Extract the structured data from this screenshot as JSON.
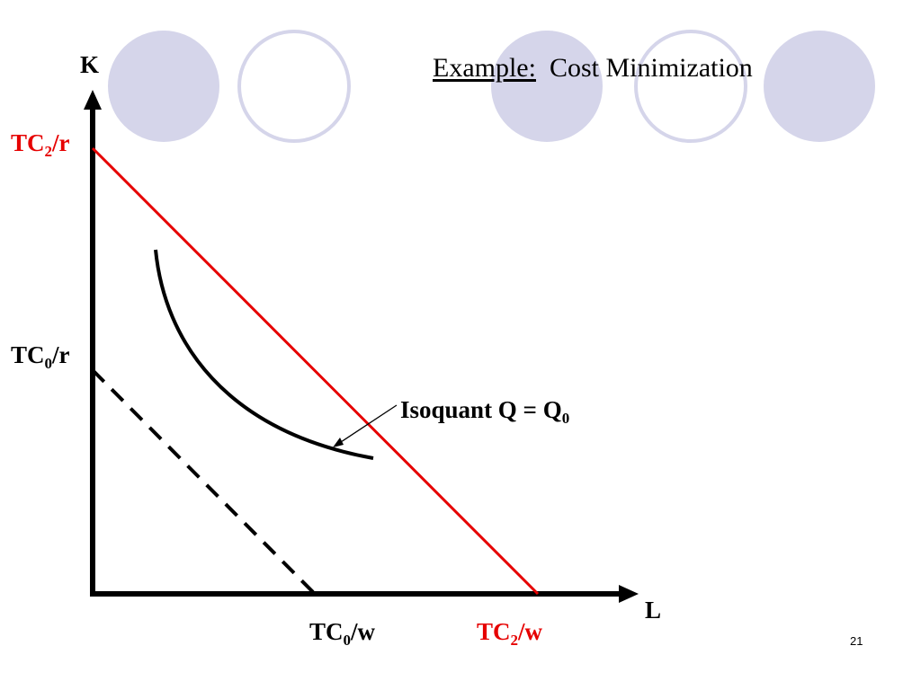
{
  "slide": {
    "title_prefix": "Example:",
    "title_text": "Cost Minimization",
    "page_number": "21"
  },
  "axes": {
    "y_label": "K",
    "x_label": "L"
  },
  "labels": {
    "tc2_r": {
      "main": "TC",
      "sub": "2",
      "tail": "/r"
    },
    "tc0_r": {
      "main": "TC",
      "sub": "0",
      "tail": "/r"
    },
    "tc0_w": {
      "main": "TC",
      "sub": "0",
      "tail": "/w"
    },
    "tc2_w": {
      "main": "TC",
      "sub": "2",
      "tail": "/w"
    },
    "isoquant": {
      "main": "Isoquant Q = Q",
      "sub": "0"
    }
  },
  "colors": {
    "decor_filled": "#d5d5ea",
    "decor_outline": "#d5d5ea",
    "isocost_tc2": "#e60000",
    "isocost_tc0": "#000000",
    "axes": "#000000"
  }
}
